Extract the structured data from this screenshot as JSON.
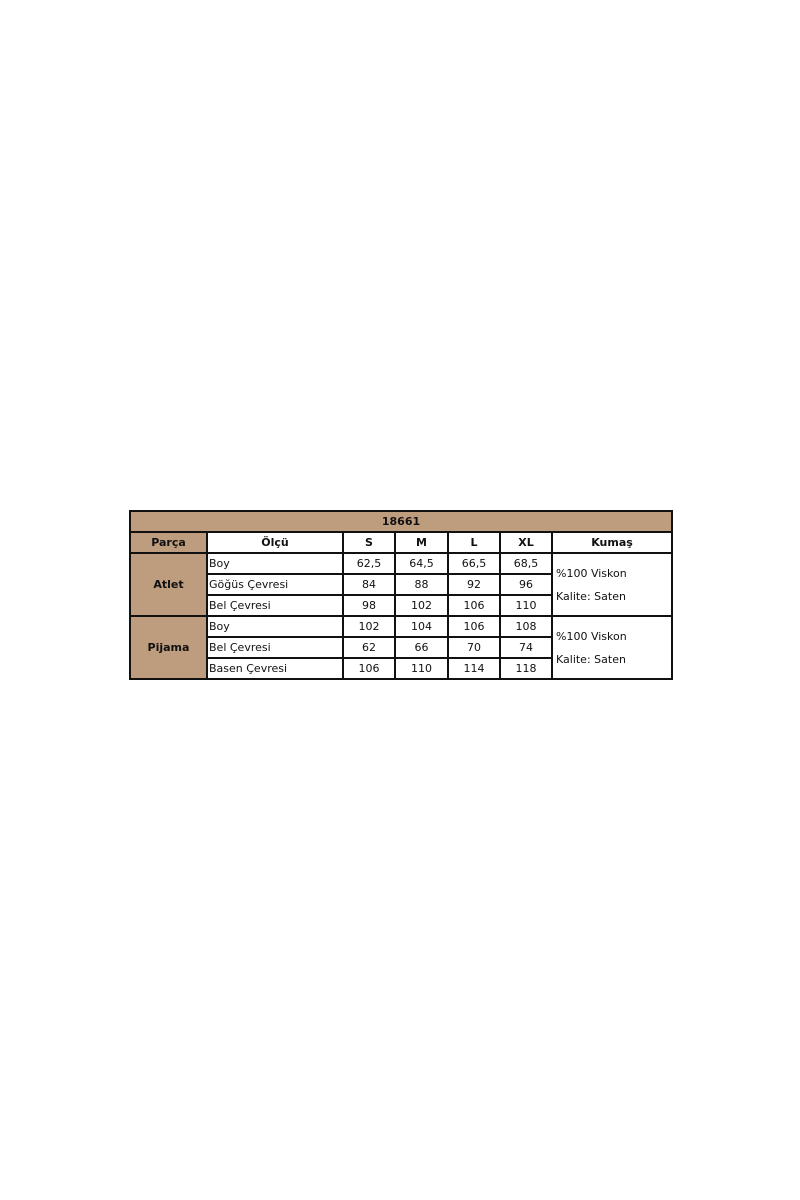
{
  "table": {
    "title": "18661",
    "headers": [
      "Parça",
      "Ölçü",
      "S",
      "M",
      "L",
      "XL",
      "Kumaş"
    ],
    "groups": [
      {
        "part": "Atlet",
        "rows": [
          {
            "measure": "Boy",
            "values": [
              "62,5",
              "64,5",
              "66,5",
              "68,5"
            ]
          },
          {
            "measure": "Göğüs Çevresi",
            "values": [
              "84",
              "88",
              "92",
              "96"
            ]
          },
          {
            "measure": "Bel Çevresi",
            "values": [
              "98",
              "102",
              "106",
              "110"
            ]
          }
        ],
        "fabric": "%100 Viskon",
        "quality": "Kalite: Saten"
      },
      {
        "part": "Pijama",
        "rows": [
          {
            "measure": "Boy",
            "values": [
              "102",
              "104",
              "106",
              "108"
            ]
          },
          {
            "measure": "Bel Çevresi",
            "values": [
              "62",
              "66",
              "70",
              "74"
            ]
          },
          {
            "measure": "Basen Çevresi",
            "values": [
              "106",
              "110",
              "114",
              "118"
            ]
          }
        ],
        "fabric": "%100 Viskon",
        "quality": "Kalite: Saten"
      }
    ],
    "header_color": "#be9c7e"
  }
}
